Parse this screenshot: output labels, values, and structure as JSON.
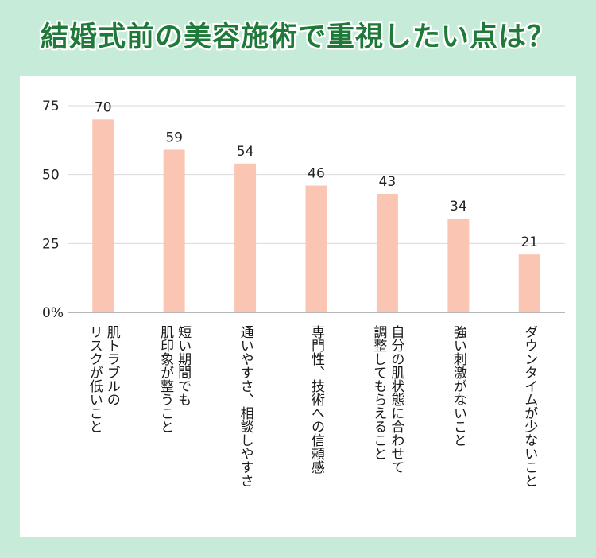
{
  "title": "結婚式前の美容施術で重視したい点は？",
  "colors": {
    "background": "#c6ebd8",
    "title": "#1f7a3a",
    "bar": "#fac5b3",
    "grid": "#d9d9d9",
    "axis": "#8c8c8c"
  },
  "chart_data": {
    "type": "bar",
    "categories": [
      [
        "肌トラブルの",
        "リスクが低いこと"
      ],
      [
        "短い期間でも",
        "肌印象が整うこと"
      ],
      [
        "通いやすさ、相談しやすさ"
      ],
      [
        "専門性、技術への信頼感"
      ],
      [
        "自分の肌状態に合わせて",
        "調整してもらえること"
      ],
      [
        "強い刺激がないこと"
      ],
      [
        "ダウンタイムが少ないこと"
      ]
    ],
    "values": [
      70,
      59,
      54,
      46,
      43,
      34,
      21
    ],
    "ylim": [
      0,
      75
    ],
    "yticks": [
      "0%",
      "25",
      "50",
      "75"
    ],
    "ytick_values": [
      0,
      25,
      50,
      75
    ],
    "grid": true,
    "legend": "none"
  }
}
